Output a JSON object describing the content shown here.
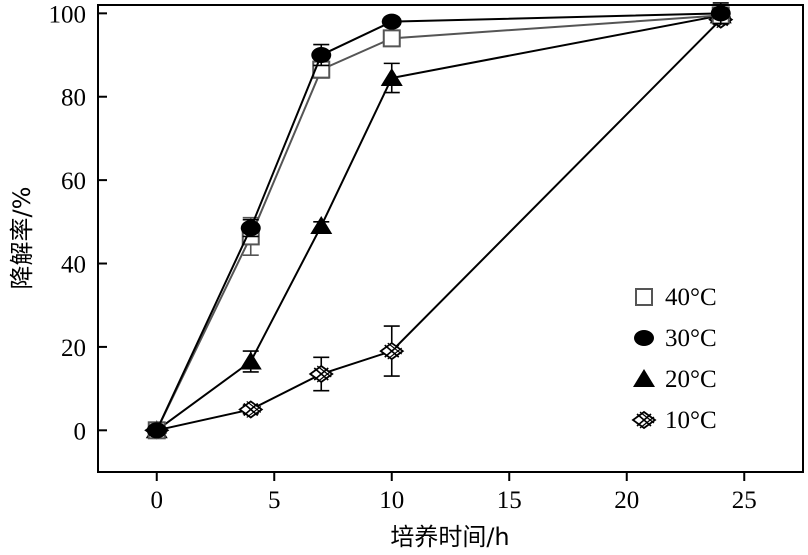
{
  "chart_data": {
    "type": "line",
    "xlabel": "培养时间/h",
    "ylabel": "降解率/%",
    "xlim": [
      -2.5,
      27.5
    ],
    "ylim": [
      -10,
      102
    ],
    "xticks": [
      0,
      5,
      10,
      15,
      20,
      25
    ],
    "yticks": [
      0,
      20,
      40,
      60,
      80,
      100
    ],
    "grid": false,
    "legend_position": "bottom-right",
    "x": [
      0,
      4,
      7,
      10,
      24
    ],
    "series": [
      {
        "name": "40°C",
        "marker": "open-square",
        "color": "#555555",
        "values": [
          0,
          46.5,
          86.5,
          94,
          99.5
        ],
        "errors": [
          0,
          4.5,
          2,
          1.5,
          1
        ]
      },
      {
        "name": "30°C",
        "marker": "filled-circle",
        "color": "#000000",
        "values": [
          0,
          48.5,
          90,
          98,
          100
        ],
        "errors": [
          0,
          2,
          2.5,
          1,
          2.5
        ]
      },
      {
        "name": "20°C",
        "marker": "filled-triangle",
        "color": "#000000",
        "values": [
          0,
          16.5,
          49,
          84.5,
          99.5
        ],
        "errors": [
          0,
          2.5,
          1,
          3.5,
          1
        ]
      },
      {
        "name": "10°C",
        "marker": "crossed-diamond",
        "color": "#000000",
        "values": [
          0,
          5,
          13.5,
          19,
          98.5
        ],
        "errors": [
          0,
          1,
          4,
          6,
          1
        ]
      }
    ]
  }
}
